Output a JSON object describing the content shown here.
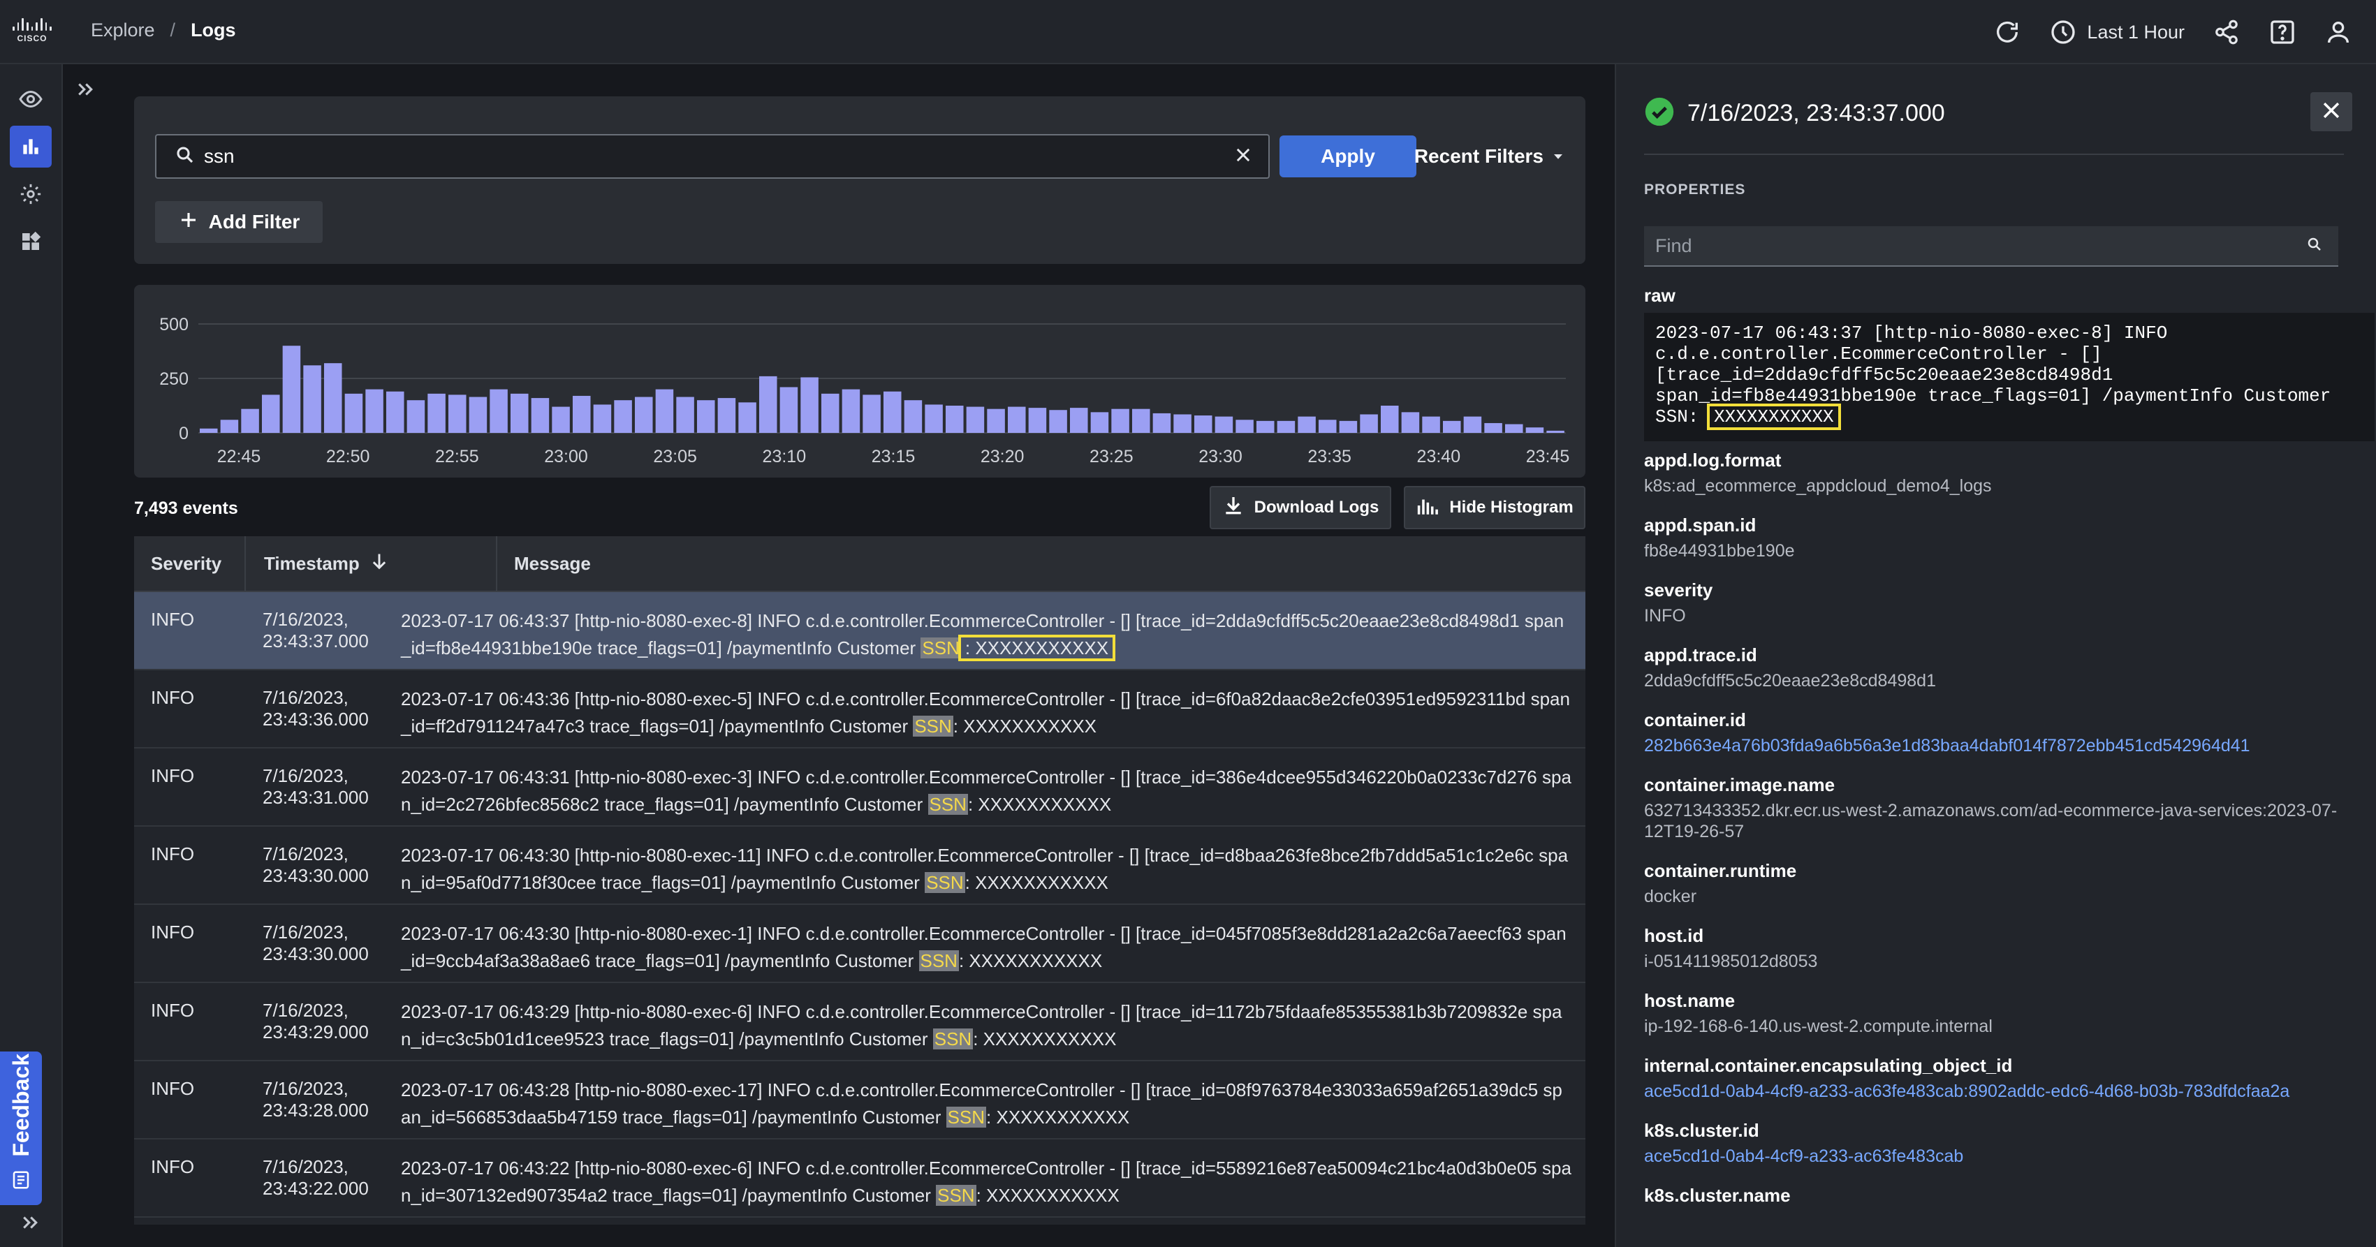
{
  "app": {
    "logo_word": "CISCO",
    "breadcrumb": [
      "Explore",
      "Logs"
    ],
    "breadcrumb_sep": "/",
    "time_range": "Last 1 Hour"
  },
  "rail": {
    "feedback_label": "Feedback"
  },
  "filter": {
    "query": "ssn",
    "apply_label": "Apply",
    "recent_label": "Recent Filters",
    "add_filter_label": "Add Filter"
  },
  "chart_data": {
    "type": "bar",
    "y_ticks": [
      "500",
      "250",
      "0"
    ],
    "ylim": [
      0,
      500
    ],
    "x_ticks": [
      "22:45",
      "22:50",
      "22:55",
      "23:00",
      "23:05",
      "23:10",
      "23:15",
      "23:20",
      "23:25",
      "23:30",
      "23:35",
      "23:40",
      "23:45"
    ],
    "values": [
      20,
      60,
      110,
      175,
      400,
      310,
      320,
      180,
      200,
      190,
      150,
      180,
      175,
      165,
      200,
      180,
      160,
      120,
      170,
      130,
      150,
      165,
      200,
      165,
      150,
      160,
      140,
      260,
      210,
      255,
      180,
      200,
      175,
      190,
      150,
      130,
      125,
      120,
      110,
      120,
      115,
      105,
      115,
      95,
      110,
      110,
      90,
      85,
      80,
      75,
      60,
      55,
      55,
      75,
      60,
      55,
      85,
      125,
      95,
      75,
      55,
      75,
      45,
      40,
      25,
      10
    ],
    "color": "#9b9ff3"
  },
  "events": {
    "count_label": "7,493 events",
    "download_label": "Download Logs",
    "hide_label": "Hide Histogram"
  },
  "table": {
    "headers": {
      "severity": "Severity",
      "timestamp": "Timestamp",
      "message": "Message"
    },
    "rows": [
      {
        "severity": "INFO",
        "timestamp": "7/16/2023, 23:43:37.000",
        "msg_pre": "2023-07-17 06:43:37 [http-nio-8080-exec-8] INFO  c.d.e.controller.EcommerceController - [] [trace_id=2dda9cfdff5c5c20eaae23e8cd8498d1 span_id=fb8e44931bbe190e trace_flags=01] /paymentInfo Customer ",
        "ssn": "SSN",
        "msg_post": ": XXXXXXXXXXX"
      },
      {
        "severity": "INFO",
        "timestamp": "7/16/2023, 23:43:36.000",
        "msg_pre": "2023-07-17 06:43:36 [http-nio-8080-exec-5] INFO  c.d.e.controller.EcommerceController - [] [trace_id=6f0a82daac8e2cfe03951ed9592311bd span_id=ff2d7911247a47c3 trace_flags=01] /paymentInfo Customer ",
        "ssn": "SSN",
        "msg_post": ": XXXXXXXXXXX"
      },
      {
        "severity": "INFO",
        "timestamp": "7/16/2023, 23:43:31.000",
        "msg_pre": "2023-07-17 06:43:31 [http-nio-8080-exec-3] INFO  c.d.e.controller.EcommerceController - [] [trace_id=386e4dcee955d346220b0a0233c7d276 span_id=2c2726bfec8568c2 trace_flags=01] /paymentInfo Customer ",
        "ssn": "SSN",
        "msg_post": ": XXXXXXXXXXX"
      },
      {
        "severity": "INFO",
        "timestamp": "7/16/2023, 23:43:30.000",
        "msg_pre": "2023-07-17 06:43:30 [http-nio-8080-exec-11] INFO  c.d.e.controller.EcommerceController - [] [trace_id=d8baa263fe8bce2fb7ddd5a51c1c2e6c span_id=95af0d7718f30cee trace_flags=01] /paymentInfo Customer ",
        "ssn": "SSN",
        "msg_post": ": XXXXXXXXXXX"
      },
      {
        "severity": "INFO",
        "timestamp": "7/16/2023, 23:43:30.000",
        "msg_pre": "2023-07-17 06:43:30 [http-nio-8080-exec-1] INFO  c.d.e.controller.EcommerceController - [] [trace_id=045f7085f3e8dd281a2a2c6a7aeecf63 span_id=9ccb4af3a38a8ae6 trace_flags=01] /paymentInfo Customer ",
        "ssn": "SSN",
        "msg_post": ": XXXXXXXXXXX"
      },
      {
        "severity": "INFO",
        "timestamp": "7/16/2023, 23:43:29.000",
        "msg_pre": "2023-07-17 06:43:29 [http-nio-8080-exec-6] INFO  c.d.e.controller.EcommerceController - [] [trace_id=1172b75fdaafe85355381b3b7209832e span_id=c3c5b01d1cee9523 trace_flags=01] /paymentInfo Customer ",
        "ssn": "SSN",
        "msg_post": ": XXXXXXXXXXX"
      },
      {
        "severity": "INFO",
        "timestamp": "7/16/2023, 23:43:28.000",
        "msg_pre": "2023-07-17 06:43:28 [http-nio-8080-exec-17] INFO  c.d.e.controller.EcommerceController - [] [trace_id=08f9763784e33033a659af2651a39dc5 span_id=566853daa5b47159 trace_flags=01] /paymentInfo Customer ",
        "ssn": "SSN",
        "msg_post": ": XXXXXXXXXXX"
      },
      {
        "severity": "INFO",
        "timestamp": "7/16/2023, 23:43:22.000",
        "msg_pre": "2023-07-17 06:43:22 [http-nio-8080-exec-6] INFO  c.d.e.controller.EcommerceController - [] [trace_id=5589216e87ea50094c21bc4a0d3b0e05 span_id=307132ed907354a2 trace_flags=01] /paymentInfo Customer ",
        "ssn": "SSN",
        "msg_post": ": XXXXXXXXXXX"
      }
    ]
  },
  "panel": {
    "title": "7/16/2023, 23:43:37.000",
    "properties_label": "PROPERTIES",
    "find_placeholder": "Find",
    "raw_label": "raw",
    "raw_text": "2023-07-17 06:43:37 [http-nio-8080-exec-8] INFO\nc.d.e.controller.EcommerceController - []\n[trace_id=2dda9cfdff5c5c20eaae23e8cd8498d1\nspan_id=fb8e44931bbe190e trace_flags=01] /paymentInfo Customer\nSSN: ",
    "raw_masked": "XXXXXXXXXXX",
    "properties": [
      {
        "key": "appd.log.format",
        "value": "k8s:ad_ecommerce_appdcloud_demo4_logs",
        "link": false
      },
      {
        "key": "appd.span.id",
        "value": "fb8e44931bbe190e",
        "link": false
      },
      {
        "key": "severity",
        "value": "INFO",
        "link": false
      },
      {
        "key": "appd.trace.id",
        "value": "2dda9cfdff5c5c20eaae23e8cd8498d1",
        "link": false
      },
      {
        "key": "container.id",
        "value": "282b663e4a76b03fda9a6b56a3e1d83baa4dabf014f7872ebb451cd542964d41",
        "link": true
      },
      {
        "key": "container.image.name",
        "value": "632713433352.dkr.ecr.us-west-2.amazonaws.com/ad-ecommerce-java-services:2023-07-12T19-26-57",
        "link": false
      },
      {
        "key": "container.runtime",
        "value": "docker",
        "link": false
      },
      {
        "key": "host.id",
        "value": "i-051411985012d8053",
        "link": false
      },
      {
        "key": "host.name",
        "value": "ip-192-168-6-140.us-west-2.compute.internal",
        "link": false
      },
      {
        "key": "internal.container.encapsulating_object_id",
        "value": "ace5cd1d-0ab4-4cf9-a233-ac63fe483cab:8902addc-edc6-4d68-b03b-783dfdcfaa2a",
        "link": true
      },
      {
        "key": "k8s.cluster.id",
        "value": "ace5cd1d-0ab4-4cf9-a233-ac63fe483cab",
        "link": true
      },
      {
        "key": "k8s.cluster.name",
        "value": "",
        "link": false
      }
    ]
  }
}
